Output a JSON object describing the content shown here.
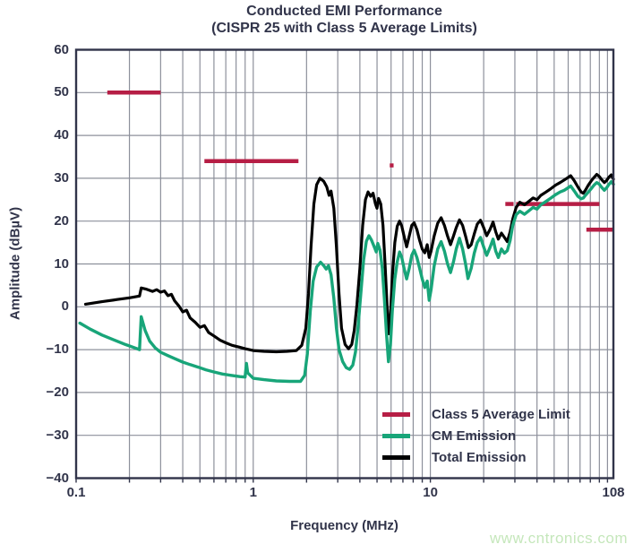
{
  "title": {
    "line1": "Conducted EMI Performance",
    "line2": "(CISPR 25 with Class 5 Average Limits)"
  },
  "axes": {
    "x": {
      "label": "Frequency (MHz)",
      "scale": "log",
      "min": 0.1,
      "max": 108,
      "tick_labels": [
        {
          "label": "0.1",
          "value": 0.1
        },
        {
          "label": "1",
          "value": 1
        },
        {
          "label": "10",
          "value": 10
        },
        {
          "label": "108",
          "value": 108
        }
      ]
    },
    "y": {
      "label": "Amplitude (dBµV)",
      "min": -40,
      "max": 60,
      "step": 10,
      "tick_labels": [
        {
          "label": "60",
          "value": 60
        },
        {
          "label": "50",
          "value": 50
        },
        {
          "label": "40",
          "value": 40
        },
        {
          "label": "30",
          "value": 30
        },
        {
          "label": "20",
          "value": 20
        },
        {
          "label": "10",
          "value": 10
        },
        {
          "label": "0",
          "value": 0
        },
        {
          "label": "−10",
          "value": -10
        },
        {
          "label": "−20",
          "value": -20
        },
        {
          "label": "−30",
          "value": -30
        },
        {
          "label": "−40",
          "value": -40
        }
      ]
    }
  },
  "legend": {
    "items": [
      {
        "label": "Class 5 Average Limit",
        "color": "#b61e45"
      },
      {
        "label": "CM Emission",
        "color": "#18a579"
      },
      {
        "label": "Total Emission",
        "color": "#000000"
      }
    ]
  },
  "colors": {
    "text": "#31344a",
    "grid": "#8d909b",
    "border": "#31344a",
    "background": "#ffffff",
    "limit": "#b61e45",
    "cm": "#18a579",
    "total": "#000000"
  },
  "watermark": {
    "text": "www.cntronics.com",
    "color": "#c5e7bb"
  },
  "chart_data": {
    "type": "line",
    "title": "Conducted EMI Performance (CISPR 25 with Class 5 Average Limits)",
    "xlabel": "Frequency (MHz)",
    "ylabel": "Amplitude (dBµV)",
    "x_scale": "log",
    "xlim": [
      0.1,
      108
    ],
    "ylim": [
      -40,
      60
    ],
    "grid": true,
    "legend_position": "inside-lower-right",
    "series": [
      {
        "name": "Class 5 Average Limit",
        "color": "#b61e45",
        "style": "segments",
        "segments_note": "each segment is [f_start_MHz, f_end_MHz, level_dBuV]",
        "segments": [
          [
            0.15,
            0.3,
            50
          ],
          [
            0.53,
            1.8,
            34
          ],
          [
            5.9,
            6.2,
            33
          ],
          [
            26.5,
            29.5,
            24
          ],
          [
            30.5,
            90,
            24
          ],
          [
            76,
            107,
            18
          ]
        ]
      },
      {
        "name": "Total Emission",
        "color": "#000000",
        "style": "line",
        "points": [
          [
            0.113,
            0.6
          ],
          [
            0.14,
            1.2
          ],
          [
            0.17,
            1.7
          ],
          [
            0.2,
            2.1
          ],
          [
            0.228,
            2.5
          ],
          [
            0.233,
            4.4
          ],
          [
            0.25,
            4.1
          ],
          [
            0.27,
            3.6
          ],
          [
            0.285,
            4.0
          ],
          [
            0.3,
            3.4
          ],
          [
            0.315,
            3.7
          ],
          [
            0.33,
            2.6
          ],
          [
            0.345,
            2.9
          ],
          [
            0.36,
            1.4
          ],
          [
            0.38,
            0.2
          ],
          [
            0.4,
            -1.2
          ],
          [
            0.42,
            -0.8
          ],
          [
            0.44,
            -2.6
          ],
          [
            0.47,
            -3.6
          ],
          [
            0.5,
            -4.8
          ],
          [
            0.53,
            -4.4
          ],
          [
            0.56,
            -6.0
          ],
          [
            0.6,
            -6.8
          ],
          [
            0.65,
            -7.8
          ],
          [
            0.7,
            -8.4
          ],
          [
            0.76,
            -9.0
          ],
          [
            0.83,
            -9.4
          ],
          [
            0.9,
            -9.8
          ],
          [
            1.0,
            -10.2
          ],
          [
            1.15,
            -10.4
          ],
          [
            1.35,
            -10.5
          ],
          [
            1.55,
            -10.4
          ],
          [
            1.75,
            -10.2
          ],
          [
            1.88,
            -9.0
          ],
          [
            1.98,
            -5.0
          ],
          [
            2.05,
            3.0
          ],
          [
            2.12,
            14.0
          ],
          [
            2.2,
            24.0
          ],
          [
            2.28,
            28.5
          ],
          [
            2.38,
            30.0
          ],
          [
            2.5,
            29.3
          ],
          [
            2.6,
            28.0
          ],
          [
            2.68,
            26.0
          ],
          [
            2.75,
            27.0
          ],
          [
            2.85,
            23.0
          ],
          [
            2.95,
            14.0
          ],
          [
            3.05,
            3.0
          ],
          [
            3.15,
            -5.0
          ],
          [
            3.3,
            -8.8
          ],
          [
            3.45,
            -9.8
          ],
          [
            3.6,
            -8.8
          ],
          [
            3.72,
            -5.5
          ],
          [
            3.85,
            0.5
          ],
          [
            4.0,
            9.0
          ],
          [
            4.15,
            19.0
          ],
          [
            4.3,
            25.0
          ],
          [
            4.45,
            26.8
          ],
          [
            4.6,
            25.8
          ],
          [
            4.75,
            26.5
          ],
          [
            4.9,
            24.0
          ],
          [
            5.0,
            23.0
          ],
          [
            5.1,
            25.3
          ],
          [
            5.25,
            24.0
          ],
          [
            5.4,
            19.0
          ],
          [
            5.55,
            10.0
          ],
          [
            5.7,
            0.0
          ],
          [
            5.82,
            -6.3
          ],
          [
            5.95,
            -2.0
          ],
          [
            6.1,
            7.0
          ],
          [
            6.3,
            15.0
          ],
          [
            6.5,
            18.8
          ],
          [
            6.7,
            20.0
          ],
          [
            6.9,
            18.8
          ],
          [
            7.1,
            16.5
          ],
          [
            7.35,
            14.0
          ],
          [
            7.6,
            16.5
          ],
          [
            7.85,
            19.0
          ],
          [
            8.1,
            19.6
          ],
          [
            8.4,
            18.0
          ],
          [
            8.7,
            15.5
          ],
          [
            9.0,
            13.5
          ],
          [
            9.3,
            12.6
          ],
          [
            9.6,
            14.5
          ],
          [
            9.85,
            11.5
          ],
          [
            10.1,
            13.0
          ],
          [
            10.5,
            16.5
          ],
          [
            11.0,
            19.5
          ],
          [
            11.5,
            20.8
          ],
          [
            12.0,
            19.0
          ],
          [
            12.5,
            16.5
          ],
          [
            13.0,
            14.5
          ],
          [
            13.5,
            16.5
          ],
          [
            14.0,
            18.5
          ],
          [
            14.6,
            20.3
          ],
          [
            15.2,
            19.0
          ],
          [
            15.8,
            16.5
          ],
          [
            16.4,
            13.8
          ],
          [
            17.0,
            14.5
          ],
          [
            17.7,
            17.0
          ],
          [
            18.4,
            19.3
          ],
          [
            19.2,
            20.2
          ],
          [
            20.0,
            18.5
          ],
          [
            20.8,
            16.6
          ],
          [
            21.7,
            18.0
          ],
          [
            22.6,
            19.8
          ],
          [
            23.4,
            17.5
          ],
          [
            24.2,
            15.8
          ],
          [
            25.2,
            17.2
          ],
          [
            26.2,
            16.2
          ],
          [
            27.2,
            15.2
          ],
          [
            28.2,
            17.5
          ],
          [
            29.2,
            20.5
          ],
          [
            30.5,
            23.2
          ],
          [
            32,
            24.4
          ],
          [
            34,
            23.8
          ],
          [
            36,
            24.6
          ],
          [
            38,
            25.4
          ],
          [
            40,
            25.0
          ],
          [
            42,
            26.0
          ],
          [
            45,
            26.8
          ],
          [
            48,
            27.6
          ],
          [
            51,
            28.4
          ],
          [
            54,
            29.0
          ],
          [
            57,
            29.6
          ],
          [
            60,
            30.2
          ],
          [
            62,
            30.6
          ],
          [
            65,
            29.4
          ],
          [
            68,
            28.0
          ],
          [
            71,
            26.8
          ],
          [
            73,
            26.5
          ],
          [
            75,
            27.2
          ],
          [
            78,
            28.4
          ],
          [
            81,
            29.4
          ],
          [
            84,
            30.2
          ],
          [
            87,
            30.9
          ],
          [
            90,
            30.4
          ],
          [
            93,
            29.6
          ],
          [
            96,
            29.0
          ],
          [
            99,
            29.5
          ],
          [
            102,
            30.3
          ],
          [
            105,
            30.8
          ],
          [
            108,
            29.8
          ]
        ]
      },
      {
        "name": "CM Emission",
        "color": "#18a579",
        "style": "line",
        "points": [
          [
            0.105,
            -3.8
          ],
          [
            0.12,
            -5.2
          ],
          [
            0.14,
            -6.6
          ],
          [
            0.165,
            -7.8
          ],
          [
            0.19,
            -8.8
          ],
          [
            0.215,
            -9.6
          ],
          [
            0.228,
            -10.0
          ],
          [
            0.233,
            -2.3
          ],
          [
            0.245,
            -5.5
          ],
          [
            0.26,
            -8.0
          ],
          [
            0.28,
            -9.6
          ],
          [
            0.3,
            -10.6
          ],
          [
            0.33,
            -11.4
          ],
          [
            0.36,
            -12.1
          ],
          [
            0.4,
            -12.9
          ],
          [
            0.44,
            -13.5
          ],
          [
            0.49,
            -14.1
          ],
          [
            0.54,
            -14.7
          ],
          [
            0.6,
            -15.2
          ],
          [
            0.67,
            -15.7
          ],
          [
            0.75,
            -16.0
          ],
          [
            0.84,
            -16.3
          ],
          [
            0.9,
            -16.4
          ],
          [
            0.915,
            -13.2
          ],
          [
            0.93,
            -15.4
          ],
          [
            1.0,
            -16.7
          ],
          [
            1.15,
            -17.0
          ],
          [
            1.35,
            -17.3
          ],
          [
            1.6,
            -17.4
          ],
          [
            1.85,
            -17.4
          ],
          [
            1.95,
            -16.0
          ],
          [
            2.02,
            -11.0
          ],
          [
            2.1,
            -1.0
          ],
          [
            2.18,
            6.0
          ],
          [
            2.28,
            9.3
          ],
          [
            2.4,
            10.4
          ],
          [
            2.5,
            9.6
          ],
          [
            2.58,
            8.8
          ],
          [
            2.66,
            9.6
          ],
          [
            2.75,
            7.5
          ],
          [
            2.85,
            2.0
          ],
          [
            2.95,
            -5.0
          ],
          [
            3.05,
            -10.0
          ],
          [
            3.2,
            -12.8
          ],
          [
            3.35,
            -14.2
          ],
          [
            3.5,
            -14.6
          ],
          [
            3.65,
            -13.6
          ],
          [
            3.78,
            -10.5
          ],
          [
            3.9,
            -5.0
          ],
          [
            4.05,
            3.0
          ],
          [
            4.2,
            11.0
          ],
          [
            4.35,
            15.3
          ],
          [
            4.5,
            16.6
          ],
          [
            4.65,
            15.6
          ],
          [
            4.8,
            14.2
          ],
          [
            4.95,
            12.8
          ],
          [
            5.05,
            14.8
          ],
          [
            5.2,
            13.2
          ],
          [
            5.35,
            9.0
          ],
          [
            5.5,
            2.0
          ],
          [
            5.65,
            -6.0
          ],
          [
            5.8,
            -12.8
          ],
          [
            5.95,
            -9.0
          ],
          [
            6.1,
            -1.0
          ],
          [
            6.3,
            6.5
          ],
          [
            6.5,
            10.5
          ],
          [
            6.7,
            12.8
          ],
          [
            6.9,
            11.5
          ],
          [
            7.1,
            9.0
          ],
          [
            7.35,
            6.5
          ],
          [
            7.6,
            9.0
          ],
          [
            7.85,
            12.0
          ],
          [
            8.1,
            13.2
          ],
          [
            8.4,
            11.5
          ],
          [
            8.7,
            9.0
          ],
          [
            9.0,
            6.5
          ],
          [
            9.3,
            4.5
          ],
          [
            9.6,
            6.0
          ],
          [
            9.85,
            1.5
          ],
          [
            10.1,
            4.0
          ],
          [
            10.5,
            9.5
          ],
          [
            11.0,
            13.5
          ],
          [
            11.5,
            15.2
          ],
          [
            12.0,
            13.0
          ],
          [
            12.5,
            10.0
          ],
          [
            13.0,
            8.0
          ],
          [
            13.5,
            10.5
          ],
          [
            14.0,
            13.5
          ],
          [
            14.6,
            16.0
          ],
          [
            15.2,
            13.5
          ],
          [
            15.8,
            10.0
          ],
          [
            16.3,
            6.6
          ],
          [
            17.0,
            9.0
          ],
          [
            17.7,
            12.5
          ],
          [
            18.4,
            15.0
          ],
          [
            19.2,
            16.2
          ],
          [
            20.0,
            14.0
          ],
          [
            20.8,
            12.0
          ],
          [
            21.7,
            13.8
          ],
          [
            22.6,
            15.8
          ],
          [
            23.4,
            13.0
          ],
          [
            24.2,
            11.5
          ],
          [
            25.2,
            13.5
          ],
          [
            26.2,
            12.5
          ],
          [
            27.2,
            13.1
          ],
          [
            28.2,
            15.5
          ],
          [
            29.2,
            19.0
          ],
          [
            30.5,
            21.5
          ],
          [
            32,
            22.3
          ],
          [
            34,
            21.6
          ],
          [
            36,
            22.4
          ],
          [
            38,
            23.2
          ],
          [
            40,
            22.8
          ],
          [
            42,
            23.8
          ],
          [
            45,
            24.6
          ],
          [
            48,
            25.4
          ],
          [
            51,
            26.2
          ],
          [
            54,
            26.8
          ],
          [
            57,
            27.2
          ],
          [
            60,
            27.8
          ],
          [
            62,
            28.2
          ],
          [
            65,
            27.0
          ],
          [
            68,
            25.8
          ],
          [
            71,
            25.2
          ],
          [
            73,
            25.4
          ],
          [
            75,
            26.0
          ],
          [
            78,
            26.8
          ],
          [
            81,
            27.6
          ],
          [
            84,
            28.4
          ],
          [
            87,
            29.0
          ],
          [
            90,
            28.6
          ],
          [
            93,
            27.8
          ],
          [
            96,
            27.2
          ],
          [
            99,
            27.8
          ],
          [
            102,
            28.6
          ],
          [
            105,
            29.2
          ],
          [
            108,
            28.6
          ]
        ]
      }
    ]
  }
}
